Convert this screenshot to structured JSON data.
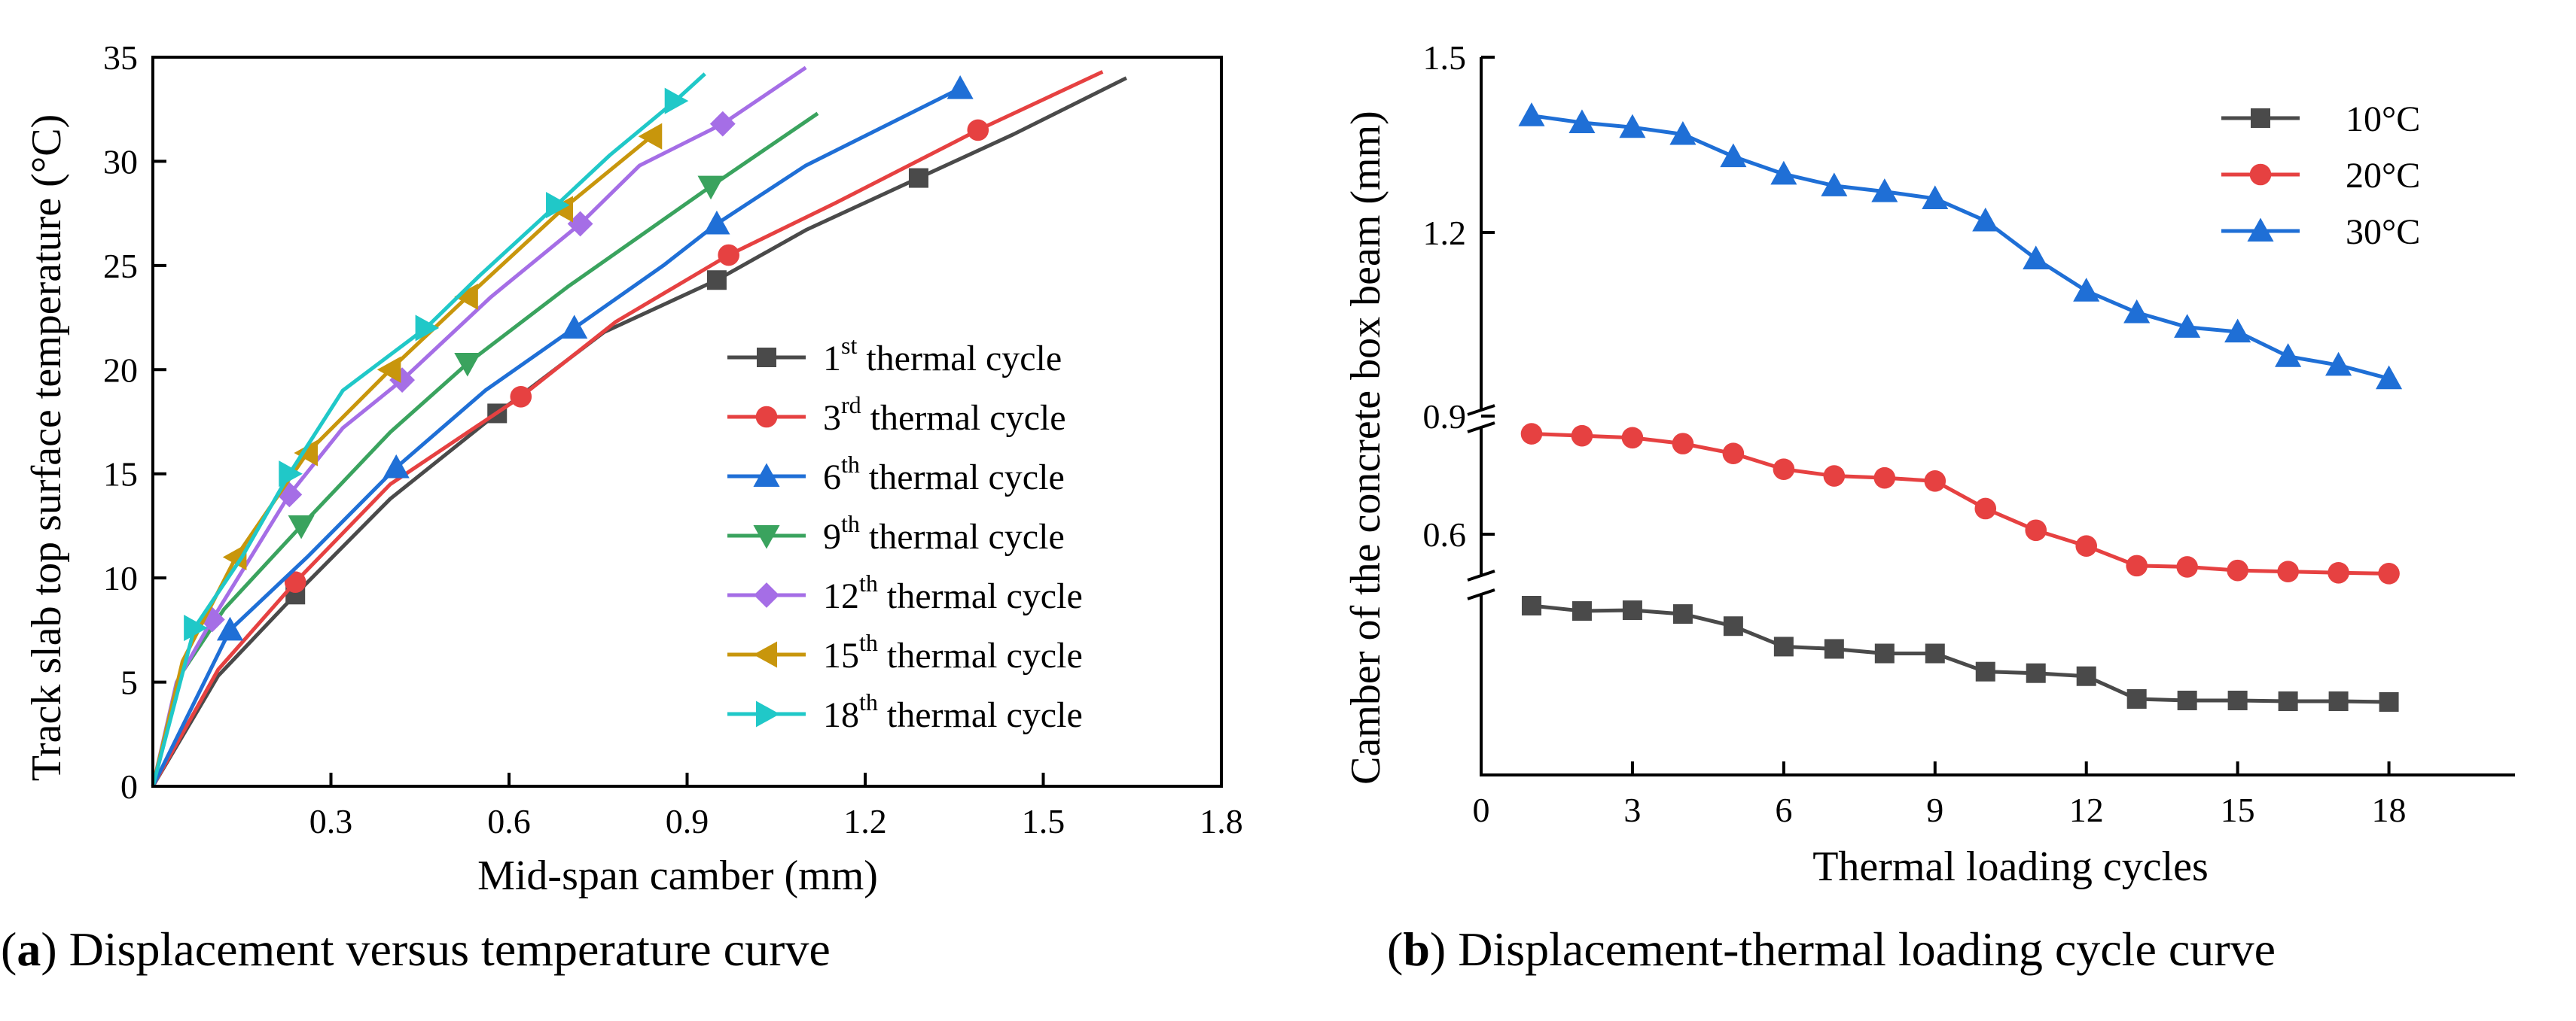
{
  "figure": {
    "caption_a": {
      "letter": "a",
      "text": " Displacement versus temperature curve"
    },
    "caption_b": {
      "letter": "b",
      "text": " Displacement-thermal loading cycle curve"
    }
  },
  "chart_data": [
    {
      "id": "a",
      "type": "line",
      "title": "",
      "xlabel": "Mid-span camber (mm)",
      "ylabel": "Track slab top surface temperature (°C)",
      "xlim": [
        0,
        1.8
      ],
      "ylim": [
        0,
        35
      ],
      "xticks": [
        0.3,
        0.6,
        0.9,
        1.2,
        1.5,
        1.8
      ],
      "xtick_labels": [
        "0.3",
        "0.6",
        "0.9",
        "1.2",
        "1.5",
        "1.8"
      ],
      "yticks": [
        0,
        5,
        10,
        15,
        20,
        25,
        30,
        35
      ],
      "ytick_labels": [
        "0",
        "5",
        "10",
        "15",
        "20",
        "25",
        "30",
        "35"
      ],
      "legend_position": "center-right",
      "series": [
        {
          "name": "1st thermal cycle",
          "base": "1",
          "sup": "st",
          "rest": " thermal cycle",
          "color": "#4a4a4a",
          "marker": "square",
          "x": [
            0,
            0.11,
            0.24,
            0.4,
            0.58,
            0.76,
            0.95,
            1.1,
            1.29,
            1.45,
            1.64
          ],
          "y": [
            0,
            5.3,
            9.2,
            13.8,
            17.9,
            21.8,
            24.3,
            26.7,
            29.2,
            31.3,
            34.0
          ],
          "markers_at": [
            2,
            4,
            6,
            8
          ]
        },
        {
          "name": "3rd thermal cycle",
          "base": "3",
          "sup": "rd",
          "rest": "  thermal cycle",
          "color": "#e64141",
          "marker": "circle",
          "x": [
            0,
            0.11,
            0.24,
            0.4,
            0.62,
            0.78,
            0.97,
            1.15,
            1.39,
            1.6
          ],
          "y": [
            0,
            5.6,
            9.8,
            14.5,
            18.7,
            22.3,
            25.5,
            28.0,
            31.5,
            34.3
          ],
          "markers_at": [
            2,
            4,
            6,
            8
          ]
        },
        {
          "name": "6th thermal cycle",
          "base": "6",
          "sup": "th",
          "rest": "  thermal cycle",
          "color": "#1f6fd6",
          "marker": "triangle-up",
          "x": [
            0,
            0.13,
            0.26,
            0.41,
            0.56,
            0.71,
            0.86,
            0.95,
            1.1,
            1.36
          ],
          "y": [
            0,
            7.5,
            11.0,
            15.3,
            19.0,
            22.0,
            25.0,
            27.0,
            29.8,
            33.5
          ],
          "markers_at": [
            1,
            3,
            5,
            7,
            9
          ]
        },
        {
          "name": "9th thermal cycle",
          "base": "9",
          "sup": "th",
          "rest": "  thermal cycle",
          "color": "#3aa35e",
          "marker": "triangle-down",
          "x": [
            0,
            0.05,
            0.12,
            0.25,
            0.4,
            0.53,
            0.7,
            0.84,
            0.94,
            1.12
          ],
          "y": [
            0,
            5.5,
            8.5,
            12.5,
            17.0,
            20.3,
            24.0,
            26.8,
            28.8,
            32.3
          ],
          "markers_at": [
            3,
            5,
            8
          ]
        },
        {
          "name": "12th thermal cycle",
          "base": "12",
          "sup": "th",
          "rest": " thermal cycle",
          "color": "#a56ee6",
          "marker": "diamond",
          "x": [
            0,
            0.04,
            0.1,
            0.23,
            0.32,
            0.42,
            0.57,
            0.72,
            0.82,
            0.96,
            1.1
          ],
          "y": [
            0,
            5.0,
            8.0,
            14.0,
            17.2,
            19.5,
            23.5,
            27.0,
            29.8,
            31.8,
            34.5
          ],
          "markers_at": [
            2,
            3,
            5,
            7,
            9
          ]
        },
        {
          "name": "15th thermal cycle",
          "base": "15",
          "sup": "th",
          "rest": " thermal cycle",
          "color": "#c8960c",
          "marker": "triangle-left",
          "x": [
            0,
            0.05,
            0.14,
            0.26,
            0.4,
            0.53,
            0.69,
            0.84
          ],
          "y": [
            0,
            6.0,
            11.0,
            16.0,
            20.0,
            23.5,
            27.7,
            31.2
          ],
          "markers_at": [
            2,
            3,
            4,
            5,
            6,
            7
          ]
        },
        {
          "name": "18th thermal cycle",
          "base": "18",
          "sup": "th",
          "rest": " thermal cycle",
          "color": "#20c8c8",
          "marker": "triangle-right",
          "x": [
            0,
            0.07,
            0.15,
            0.23,
            0.32,
            0.46,
            0.55,
            0.68,
            0.77,
            0.88,
            0.93
          ],
          "y": [
            0,
            7.6,
            11.0,
            15.0,
            19.0,
            22.0,
            24.5,
            27.9,
            30.3,
            32.9,
            34.2
          ],
          "markers_at": [
            1,
            3,
            5,
            7,
            9
          ]
        }
      ]
    },
    {
      "id": "b",
      "type": "line",
      "title": "",
      "xlabel": "Thermal loading cycles",
      "ylabel": "Camber of the concrete box beam (mm)",
      "xlim": [
        0,
        20.5
      ],
      "xticks": [
        0,
        3,
        6,
        9,
        12,
        15,
        18
      ],
      "xtick_labels": [
        "0",
        "3",
        "6",
        "9",
        "12",
        "15",
        "18"
      ],
      "y_axis": "broken",
      "yticks_labels": [
        "1.5",
        "1.2",
        "0.9",
        "0.6"
      ],
      "ytick_values": [
        1.5,
        1.2,
        0.9,
        0.6
      ],
      "legend_position": "top-right",
      "series": [
        {
          "name": "10°C",
          "color": "#4a4a4a",
          "marker": "square",
          "segment": "low",
          "x": [
            1,
            2,
            3,
            4,
            5,
            6,
            7,
            8,
            9,
            10,
            11,
            12,
            13,
            14,
            15,
            16,
            17,
            18
          ],
          "y": [
            0.441,
            0.434,
            0.435,
            0.43,
            0.414,
            0.387,
            0.384,
            0.378,
            0.378,
            0.354,
            0.352,
            0.348,
            0.318,
            0.316,
            0.316,
            0.315,
            0.315,
            0.314
          ]
        },
        {
          "name": "20°C",
          "color": "#e64141",
          "marker": "circle",
          "segment": "mid",
          "x": [
            1,
            2,
            3,
            4,
            5,
            6,
            7,
            8,
            9,
            10,
            11,
            12,
            13,
            14,
            15,
            16,
            17,
            18
          ],
          "y": [
            0.855,
            0.85,
            0.845,
            0.83,
            0.805,
            0.765,
            0.748,
            0.743,
            0.735,
            0.665,
            0.61,
            0.57,
            0.52,
            0.517,
            0.508,
            0.505,
            0.502,
            0.5
          ]
        },
        {
          "name": "30°C",
          "color": "#1f6fd6",
          "marker": "triangle-up",
          "segment": "high",
          "x": [
            1,
            2,
            3,
            4,
            5,
            6,
            7,
            8,
            9,
            10,
            11,
            12,
            13,
            14,
            15,
            16,
            17,
            18
          ],
          "y": [
            1.4,
            1.388,
            1.38,
            1.368,
            1.33,
            1.3,
            1.28,
            1.27,
            1.258,
            1.22,
            1.155,
            1.1,
            1.063,
            1.038,
            1.03,
            0.988,
            0.973,
            0.95
          ]
        }
      ]
    }
  ]
}
